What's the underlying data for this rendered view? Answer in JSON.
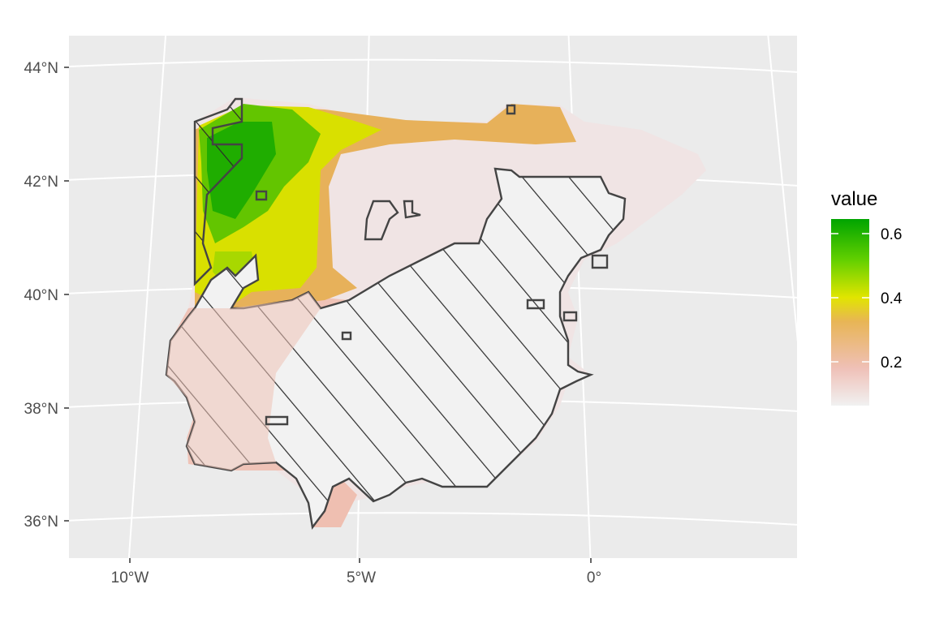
{
  "map": {
    "projection": "conic",
    "latitude_ticks": [
      "44°N",
      "42°N",
      "40°N",
      "38°N",
      "36°N"
    ],
    "longitude_ticks": [
      "10°W",
      "5°W",
      "0°"
    ],
    "panel_background": "#ebebeb",
    "graticule_color": "#ffffff",
    "hatched_region": "South-central Iberia (diagonal hatching)"
  },
  "legend": {
    "title": "value",
    "labels": [
      "0.6",
      "0.4",
      "0.2"
    ],
    "gradient": [
      "#00a400",
      "#63d000",
      "#e1e500",
      "#e8b556",
      "#efc0b7",
      "#f1f1f1"
    ],
    "range": [
      0.05,
      0.65
    ]
  }
}
